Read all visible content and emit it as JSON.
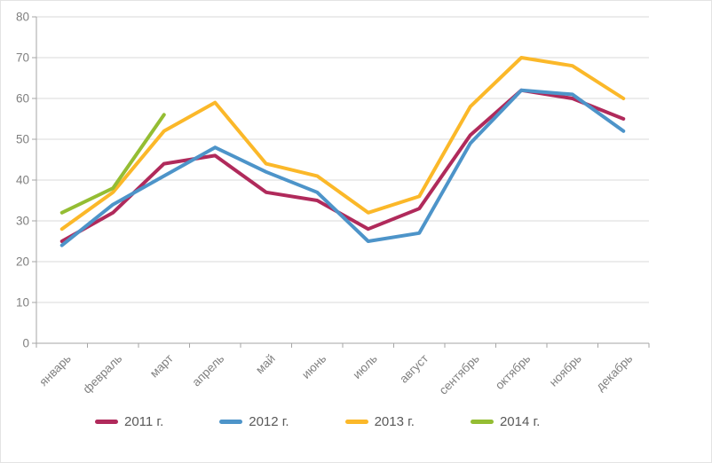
{
  "chart_data": {
    "type": "line",
    "title": "",
    "categories": [
      "январь",
      "февраль",
      "март",
      "апрель",
      "май",
      "июнь",
      "июль",
      "август",
      "сентябрь",
      "октябрь",
      "ноябрь",
      "декабрь"
    ],
    "series": [
      {
        "name": "2011 г.",
        "color": "#B02A5B",
        "values": [
          25,
          32,
          44,
          46,
          37,
          35,
          28,
          33,
          51,
          62,
          60,
          55
        ]
      },
      {
        "name": "2012 г.",
        "color": "#4D94C9",
        "values": [
          24,
          34,
          41,
          48,
          42,
          37,
          25,
          27,
          49,
          62,
          61,
          52
        ]
      },
      {
        "name": "2013 г.",
        "color": "#FBB829",
        "values": [
          28,
          37,
          52,
          59,
          44,
          41,
          32,
          36,
          58,
          70,
          68,
          60
        ]
      },
      {
        "name": "2014 г.",
        "color": "#94BD33",
        "values": [
          32,
          38,
          56
        ]
      }
    ],
    "ylim": [
      0,
      80
    ],
    "ytick_step": 10,
    "y_tick_labels": [
      "0",
      "10",
      "20",
      "30",
      "40",
      "50",
      "60",
      "70",
      "80"
    ],
    "grid": true,
    "legend_position": "bottom",
    "x_label_rotation_deg": -45
  },
  "style_colors": {
    "gridline": "#D9D9D9",
    "axis_line": "#A6A6A6",
    "tick_label": "#808080",
    "legend_text": "#595959",
    "background": "#FFFFFF"
  }
}
